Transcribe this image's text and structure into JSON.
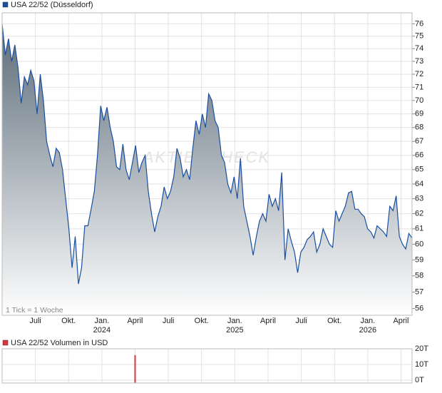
{
  "chart_data": [
    {
      "type": "area",
      "title": "USA 22/52 (Düsseldorf)",
      "note": "1 Tick = 1 Woche",
      "watermark": "AKTIENCHECK",
      "log": true,
      "grid": true,
      "yaxis_side": "right",
      "xlim": [
        "2023-04",
        "2026-05"
      ],
      "xticks": [
        {
          "value": "2023-07",
          "label": "Juli"
        },
        {
          "value": "2023-10",
          "label": "Okt."
        },
        {
          "value": "2024-01",
          "label": "Jan.",
          "year": "2024"
        },
        {
          "value": "2024-04",
          "label": "April"
        },
        {
          "value": "2024-07",
          "label": "Juli"
        },
        {
          "value": "2024-10",
          "label": "Okt."
        },
        {
          "value": "2025-01",
          "label": "Jan.",
          "year": "2025"
        },
        {
          "value": "2025-04",
          "label": "April"
        },
        {
          "value": "2025-07",
          "label": "Juli"
        },
        {
          "value": "2025-10",
          "label": "Okt."
        },
        {
          "value": "2026-01",
          "label": "Jan.",
          "year": "2026"
        },
        {
          "value": "2026-04",
          "label": "April"
        }
      ],
      "ylim": [
        55.6,
        76.9
      ],
      "yticks": [
        76,
        75,
        74,
        73,
        72,
        71,
        70,
        69,
        68,
        67,
        66,
        65,
        64,
        63,
        62,
        61,
        60,
        59,
        58,
        57,
        56
      ],
      "series": [
        {
          "name": "USA 22/52 (Düsseldorf)",
          "color": "#1a4fa0",
          "values": [
            76,
            73.5,
            74.8,
            73,
            74.3,
            72.5,
            69.8,
            71.8,
            71.2,
            72.3,
            71.5,
            69,
            72,
            70,
            67,
            66,
            65.2,
            66.5,
            66.2,
            65,
            63,
            61,
            58.5,
            60.5,
            57.5,
            58.5,
            61.2,
            61.2,
            62.3,
            63.5,
            66,
            69.6,
            68.5,
            69.5,
            68,
            67,
            65.2,
            65,
            66.8,
            65,
            64.3,
            65.5,
            66.7,
            64.8,
            65.5,
            66,
            63.5,
            62,
            60.8,
            61.8,
            62.5,
            63.8,
            63,
            63.5,
            64.5,
            66.5,
            65.8,
            64.5,
            65,
            64.3,
            66.5,
            68.5,
            67.5,
            69,
            68,
            70.5,
            70,
            68.5,
            68,
            66,
            65.5,
            64,
            63.4,
            64.5,
            63,
            65.8,
            62.5,
            61.5,
            60.5,
            59.3,
            60.5,
            61.5,
            62,
            61.5,
            63.3,
            62.5,
            63,
            62.2,
            64.8,
            59,
            61,
            60.2,
            59.5,
            58.2,
            59.5,
            59.8,
            60.3,
            60.5,
            60.8,
            59.5,
            60,
            61,
            60.5,
            60,
            59.8,
            62.2,
            61.5,
            62,
            62.5,
            63.4,
            63.5,
            62.3,
            62.3,
            62,
            61.8,
            61,
            60.8,
            60.4,
            61.2,
            61,
            60.8,
            60.5,
            62.5,
            62.2,
            63.2,
            60.5,
            60,
            59.7,
            60.7,
            60.4
          ]
        }
      ]
    },
    {
      "type": "volume",
      "title": "USA 22/52 Volumen in USD",
      "grid": true,
      "ylim": [
        -1.8,
        20
      ],
      "yticks": [
        {
          "value": 20,
          "label": "20T"
        },
        {
          "value": 10,
          "label": "10T"
        },
        {
          "value": 0,
          "label": "0T"
        }
      ],
      "bars": [
        {
          "x": "2024-04",
          "value": 16,
          "color": "#d9363e"
        }
      ],
      "legend_color": "#d9363e"
    }
  ]
}
